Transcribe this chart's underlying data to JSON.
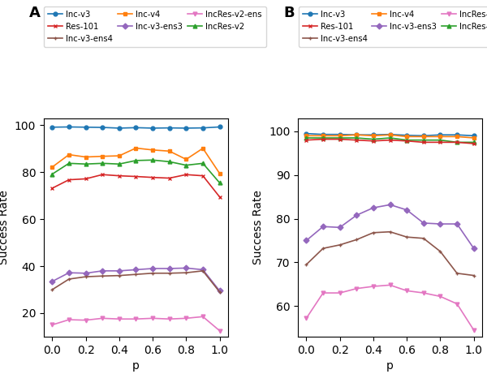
{
  "x": [
    0.0,
    0.1,
    0.2,
    0.3,
    0.4,
    0.5,
    0.6,
    0.7,
    0.8,
    0.9,
    1.0
  ],
  "panel_A": {
    "Inc-v3": [
      99.2,
      99.3,
      99.2,
      99.1,
      98.8,
      99.0,
      98.8,
      98.9,
      98.8,
      98.9,
      99.3
    ],
    "Inc-v4": [
      82.2,
      87.5,
      86.5,
      86.8,
      87.0,
      90.3,
      89.5,
      89.0,
      85.5,
      90.2,
      79.5
    ],
    "IncRes-v2": [
      79.2,
      83.8,
      83.5,
      83.8,
      83.5,
      85.0,
      85.2,
      84.5,
      83.0,
      83.8,
      75.5
    ],
    "Res-101": [
      73.2,
      76.8,
      77.2,
      79.0,
      78.5,
      78.2,
      77.8,
      77.5,
      79.0,
      78.5,
      69.5
    ],
    "Inc-v3-ens3": [
      33.5,
      37.2,
      37.0,
      38.0,
      38.0,
      38.5,
      39.0,
      39.0,
      39.2,
      38.5,
      29.5
    ],
    "Inc-v3-ens4": [
      30.0,
      34.5,
      35.5,
      35.8,
      36.0,
      36.5,
      37.0,
      37.0,
      37.2,
      38.0,
      29.0
    ],
    "IncRes-v2-ens": [
      15.0,
      17.2,
      17.0,
      17.8,
      17.5,
      17.5,
      17.8,
      17.5,
      17.8,
      18.5,
      12.5
    ]
  },
  "panel_B": {
    "Inc-v3": [
      99.5,
      99.3,
      99.3,
      99.2,
      99.2,
      99.3,
      99.1,
      99.0,
      99.2,
      99.2,
      99.0
    ],
    "Inc-v4": [
      99.0,
      99.0,
      99.0,
      99.2,
      99.0,
      99.2,
      98.8,
      98.8,
      98.8,
      98.8,
      98.5
    ],
    "IncRes-v2": [
      98.5,
      98.5,
      98.5,
      98.5,
      98.2,
      98.5,
      98.0,
      98.0,
      98.0,
      97.5,
      97.5
    ],
    "Res-101": [
      98.0,
      98.2,
      98.2,
      98.0,
      97.8,
      98.0,
      97.8,
      97.5,
      97.5,
      97.5,
      97.2
    ],
    "Inc-v3-ens3": [
      75.0,
      78.2,
      78.0,
      80.8,
      82.5,
      83.2,
      82.0,
      79.0,
      78.8,
      78.8,
      73.2
    ],
    "Inc-v3-ens4": [
      69.5,
      73.2,
      74.0,
      75.2,
      76.8,
      77.0,
      75.8,
      75.5,
      72.5,
      67.5,
      67.0
    ],
    "IncRes-v2-ens": [
      57.2,
      63.0,
      63.0,
      64.0,
      64.5,
      64.8,
      63.5,
      63.0,
      62.2,
      60.5,
      54.5
    ]
  },
  "colors": {
    "Inc-v3": "#1f77b4",
    "Inc-v4": "#ff7f0e",
    "IncRes-v2": "#2ca02c",
    "Res-101": "#d62728",
    "Inc-v3-ens3": "#9467bd",
    "Inc-v3-ens4": "#8c564b",
    "IncRes-v2-ens": "#e377c2"
  },
  "markers": {
    "Inc-v3": "o",
    "Inc-v4": "s",
    "IncRes-v2": "^",
    "Res-101": "x",
    "Inc-v3-ens3": "D",
    "Inc-v3-ens4": "+",
    "IncRes-v2-ens": "v"
  },
  "legend_order": [
    "Inc-v3",
    "Res-101",
    "Inc-v3-ens4",
    "Inc-v4",
    "Inc-v3-ens3",
    "IncRes-v2-ens",
    "IncRes-v2"
  ],
  "models_plot_order": [
    "Inc-v3",
    "Inc-v4",
    "IncRes-v2",
    "Res-101",
    "Inc-v3-ens3",
    "Inc-v3-ens4",
    "IncRes-v2-ens"
  ],
  "ylabel": "Success Rate",
  "xlabel": "p",
  "panel_A_ylim": [
    10,
    103
  ],
  "panel_B_ylim": [
    53,
    103
  ],
  "panel_A_yticks": [
    20,
    40,
    60,
    80,
    100
  ],
  "panel_B_yticks": [
    60,
    70,
    80,
    90,
    100
  ]
}
